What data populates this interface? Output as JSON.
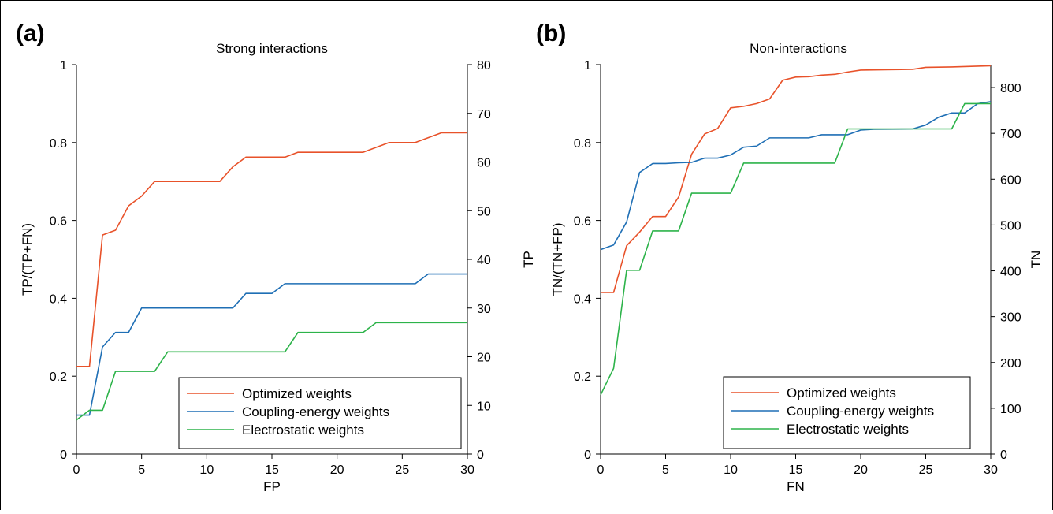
{
  "colors": {
    "optimized": "#e8522a",
    "coupling": "#1f6fb5",
    "electrostatic": "#2db34a"
  },
  "chart_data": [
    {
      "type": "line",
      "panel_letter": "(a)",
      "title": "Strong interactions",
      "xlabel": "FP",
      "ylabel": "TP/(TP+FN)",
      "ylabel_right": "TP",
      "xlim": [
        0,
        30
      ],
      "ylim": [
        0,
        1
      ],
      "ylim_right": [
        0,
        80
      ],
      "x_ticks": [
        "0",
        "5",
        "10",
        "15",
        "20",
        "25",
        "30"
      ],
      "y_ticks": [
        "0",
        "0.2",
        "0.4",
        "0.6",
        "0.8",
        "1"
      ],
      "y_right_ticks": [
        "0",
        "10",
        "20",
        "30",
        "40",
        "50",
        "60",
        "70",
        "80"
      ],
      "legend_position": "bottom-right",
      "series": [
        {
          "name": "Optimized weights",
          "color": "#e8522a",
          "points": [
            [
              0,
              0.225
            ],
            [
              1,
              0.225
            ],
            [
              2,
              0.5625
            ],
            [
              3,
              0.575
            ],
            [
              4,
              0.6375
            ],
            [
              5,
              0.6625
            ],
            [
              6,
              0.7
            ],
            [
              11,
              0.7
            ],
            [
              12,
              0.7375
            ],
            [
              13,
              0.7625
            ],
            [
              16,
              0.7625
            ],
            [
              17,
              0.775
            ],
            [
              22,
              0.775
            ],
            [
              24,
              0.8
            ],
            [
              26,
              0.8
            ],
            [
              28,
              0.825
            ],
            [
              30,
              0.825
            ]
          ]
        },
        {
          "name": "Coupling-energy weights",
          "color": "#1f6fb5",
          "points": [
            [
              0,
              0.1
            ],
            [
              1,
              0.1
            ],
            [
              2,
              0.275
            ],
            [
              3,
              0.3125
            ],
            [
              4,
              0.3125
            ],
            [
              5,
              0.375
            ],
            [
              12,
              0.375
            ],
            [
              13,
              0.4125
            ],
            [
              15,
              0.4125
            ],
            [
              16,
              0.4375
            ],
            [
              26,
              0.4375
            ],
            [
              27,
              0.4625
            ],
            [
              30,
              0.4625
            ]
          ]
        },
        {
          "name": "Electrostatic weights",
          "color": "#2db34a",
          "points": [
            [
              0,
              0.0875
            ],
            [
              1,
              0.1125
            ],
            [
              2,
              0.1125
            ],
            [
              3,
              0.2125
            ],
            [
              6,
              0.2125
            ],
            [
              7,
              0.2625
            ],
            [
              16,
              0.2625
            ],
            [
              17,
              0.3125
            ],
            [
              22,
              0.3125
            ],
            [
              23,
              0.3375
            ],
            [
              30,
              0.3375
            ]
          ]
        }
      ]
    },
    {
      "type": "line",
      "panel_letter": "(b)",
      "title": "Non-interactions",
      "xlabel": "FN",
      "ylabel": "TN/(TN+FP)",
      "ylabel_right": "TN",
      "xlim": [
        0,
        30
      ],
      "ylim": [
        0,
        1
      ],
      "ylim_right": [
        0,
        850
      ],
      "x_ticks": [
        "0",
        "5",
        "10",
        "15",
        "20",
        "25",
        "30"
      ],
      "y_ticks": [
        "0",
        "0.2",
        "0.4",
        "0.6",
        "0.8",
        "1"
      ],
      "y_right_ticks": [
        "0",
        "100",
        "200",
        "300",
        "400",
        "500",
        "600",
        "700",
        "800"
      ],
      "legend_position": "bottom-right",
      "series": [
        {
          "name": "Optimized weights",
          "color": "#e8522a",
          "points": [
            [
              0,
              0.415
            ],
            [
              1,
              0.415
            ],
            [
              2,
              0.535
            ],
            [
              3,
              0.57
            ],
            [
              4,
              0.61
            ],
            [
              5,
              0.61
            ],
            [
              6,
              0.66
            ],
            [
              7,
              0.77
            ],
            [
              8,
              0.822
            ],
            [
              9,
              0.836
            ],
            [
              10,
              0.889
            ],
            [
              11,
              0.893
            ],
            [
              12,
              0.9
            ],
            [
              13,
              0.912
            ],
            [
              14,
              0.96
            ],
            [
              15,
              0.968
            ],
            [
              16,
              0.969
            ],
            [
              17,
              0.973
            ],
            [
              18,
              0.975
            ],
            [
              19,
              0.981
            ],
            [
              20,
              0.986
            ],
            [
              22,
              0.987
            ],
            [
              24,
              0.988
            ],
            [
              25,
              0.993
            ],
            [
              27,
              0.994
            ],
            [
              28,
              0.995
            ],
            [
              30,
              0.997
            ]
          ]
        },
        {
          "name": "Coupling-energy weights",
          "color": "#1f6fb5",
          "points": [
            [
              0,
              0.525
            ],
            [
              1,
              0.537
            ],
            [
              2,
              0.596
            ],
            [
              3,
              0.723
            ],
            [
              4,
              0.746
            ],
            [
              5,
              0.746
            ],
            [
              6,
              0.748
            ],
            [
              7,
              0.749
            ],
            [
              8,
              0.76
            ],
            [
              9,
              0.76
            ],
            [
              10,
              0.768
            ],
            [
              11,
              0.788
            ],
            [
              12,
              0.791
            ],
            [
              13,
              0.812
            ],
            [
              16,
              0.812
            ],
            [
              17,
              0.82
            ],
            [
              19,
              0.82
            ],
            [
              20,
              0.832
            ],
            [
              21,
              0.834
            ],
            [
              24,
              0.835
            ],
            [
              25,
              0.845
            ],
            [
              26,
              0.865
            ],
            [
              27,
              0.876
            ],
            [
              28,
              0.876
            ],
            [
              29,
              0.9
            ],
            [
              30,
              0.905
            ]
          ]
        },
        {
          "name": "Electrostatic weights",
          "color": "#2db34a",
          "points": [
            [
              0,
              0.152
            ],
            [
              1,
              0.22
            ],
            [
              2,
              0.472
            ],
            [
              3,
              0.472
            ],
            [
              4,
              0.573
            ],
            [
              6,
              0.573
            ],
            [
              7,
              0.67
            ],
            [
              10,
              0.67
            ],
            [
              11,
              0.747
            ],
            [
              18,
              0.747
            ],
            [
              19,
              0.835
            ],
            [
              27,
              0.835
            ],
            [
              28,
              0.9
            ],
            [
              30,
              0.9
            ]
          ]
        }
      ]
    }
  ]
}
